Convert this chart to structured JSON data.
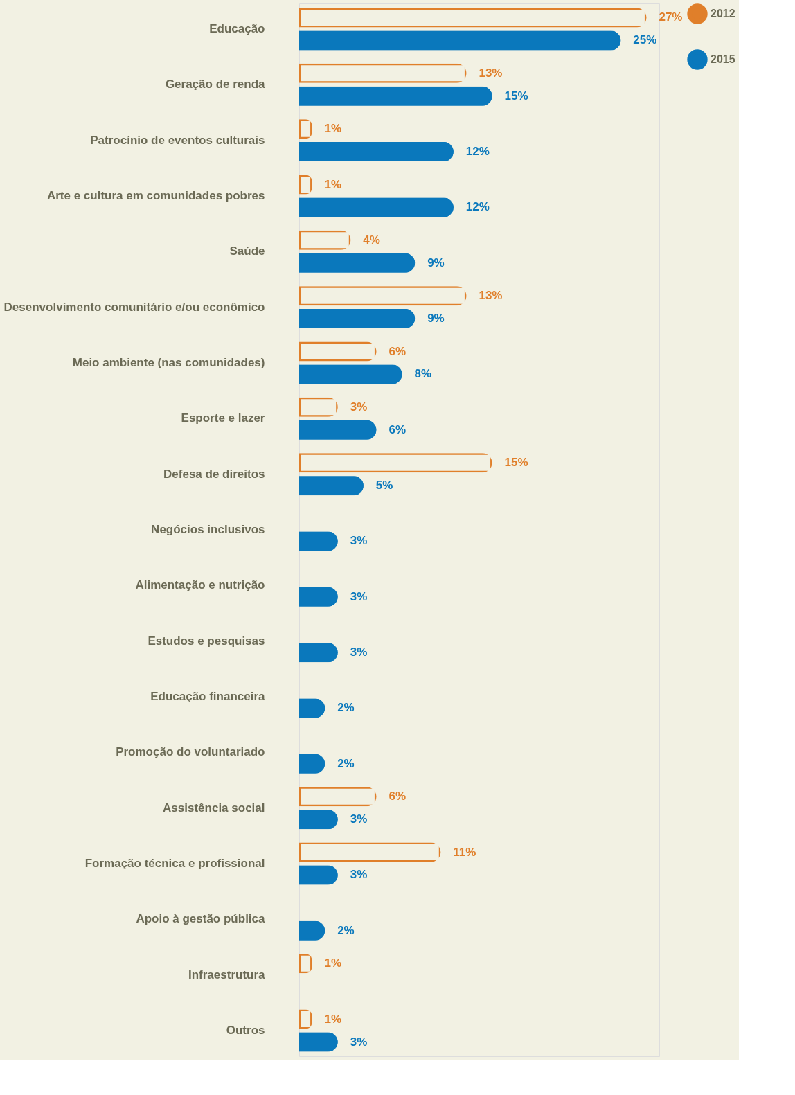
{
  "chart_data": {
    "type": "bar",
    "orientation": "horizontal",
    "legend": "top right",
    "tick_labels": "y",
    "grid": false,
    "categories": [
      "Educação",
      "Geração de renda",
      "Patrocínio de eventos culturais",
      "Arte e cultura em comunidades pobres",
      "Saúde",
      "Desenvolvimento comunitário e/ou econômico",
      "Meio ambiente (nas comunidades)",
      "Esporte e lazer",
      "Defesa de direitos",
      "Negócios inclusivos",
      "Alimentação e nutrição",
      "Estudos e pesquisas",
      "Educação financeira",
      "Promoção do voluntariado",
      "Assistência social",
      "Formação técnica e profissional",
      "Apoio à gestão pública",
      "Infraestrutura",
      "Outros"
    ],
    "series": [
      {
        "name": "2012",
        "color": "#e07f2a",
        "values": [
          27,
          13,
          1,
          1,
          4,
          13,
          6,
          3,
          15,
          null,
          null,
          null,
          null,
          null,
          6,
          11,
          null,
          1,
          1
        ],
        "value_labels": [
          "27%",
          "13%",
          "1%",
          "1%",
          "4%",
          "13%",
          "6%",
          "3%",
          "15%",
          null,
          null,
          null,
          null,
          null,
          "6%",
          "11%",
          null,
          "1%",
          "1%"
        ]
      },
      {
        "name": "2015",
        "color": "#0a78bc",
        "values": [
          25,
          15,
          12,
          12,
          9,
          9,
          8,
          6,
          5,
          3,
          3,
          3,
          2,
          2,
          3,
          3,
          2,
          null,
          3
        ],
        "value_labels": [
          "25%",
          "15%",
          "12%",
          "12%",
          "9%",
          "9%",
          "8%",
          "6%",
          "5%",
          "3%",
          "3%",
          "3%",
          "2%",
          "2%",
          "3%",
          "3%",
          "2%",
          null,
          "3%"
        ]
      }
    ]
  }
}
